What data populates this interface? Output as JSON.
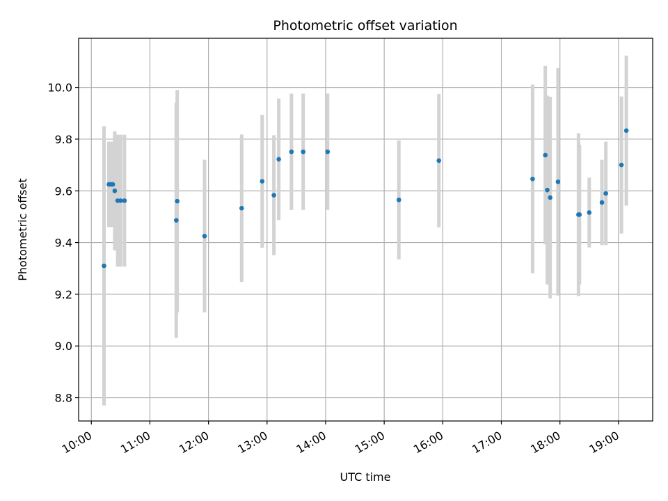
{
  "chart_data": {
    "type": "scatter",
    "title": "Photometric offset variation",
    "xlabel": "UTC time",
    "ylabel": "Photometric offset",
    "x_ticks": [
      "10:00",
      "11:00",
      "12:00",
      "13:00",
      "14:00",
      "15:00",
      "16:00",
      "17:00",
      "18:00",
      "19:00"
    ],
    "y_ticks": [
      "8.8",
      "9.0",
      "9.2",
      "9.4",
      "9.6",
      "9.8",
      "10.0"
    ],
    "xlim": [
      "09:47",
      "19:35"
    ],
    "ylim": [
      8.71,
      10.19
    ],
    "grid": true,
    "colors": {
      "point": "#1f77b4",
      "errorbar": "#d3d3d3",
      "grid": "#b0b0b0"
    },
    "points": [
      {
        "x": "10:13",
        "y": 9.31,
        "err": 0.54
      },
      {
        "x": "10:18",
        "y": 9.625,
        "err": 0.165
      },
      {
        "x": "10:20",
        "y": 9.625,
        "err": 0.165
      },
      {
        "x": "10:22",
        "y": 9.625,
        "err": 0.165
      },
      {
        "x": "10:24",
        "y": 9.6,
        "err": 0.23
      },
      {
        "x": "10:27",
        "y": 9.562,
        "err": 0.255
      },
      {
        "x": "10:30",
        "y": 9.562,
        "err": 0.255
      },
      {
        "x": "10:34",
        "y": 9.562,
        "err": 0.255
      },
      {
        "x": "11:27",
        "y": 9.486,
        "err": 0.455
      },
      {
        "x": "11:28",
        "y": 9.56,
        "err": 0.43
      },
      {
        "x": "11:56",
        "y": 9.425,
        "err": 0.295
      },
      {
        "x": "12:34",
        "y": 9.533,
        "err": 0.285
      },
      {
        "x": "12:55",
        "y": 9.637,
        "err": 0.257
      },
      {
        "x": "13:07",
        "y": 9.583,
        "err": 0.232
      },
      {
        "x": "13:12",
        "y": 9.722,
        "err": 0.235
      },
      {
        "x": "13:25",
        "y": 9.751,
        "err": 0.225
      },
      {
        "x": "13:37",
        "y": 9.751,
        "err": 0.225
      },
      {
        "x": "14:02",
        "y": 9.751,
        "err": 0.225
      },
      {
        "x": "15:15",
        "y": 9.565,
        "err": 0.23
      },
      {
        "x": "15:56",
        "y": 9.717,
        "err": 0.258
      },
      {
        "x": "17:32",
        "y": 9.646,
        "err": 0.365
      },
      {
        "x": "17:45",
        "y": 9.738,
        "err": 0.345
      },
      {
        "x": "17:47",
        "y": 9.603,
        "err": 0.365
      },
      {
        "x": "17:50",
        "y": 9.574,
        "err": 0.39
      },
      {
        "x": "17:58",
        "y": 9.635,
        "err": 0.44
      },
      {
        "x": "18:19",
        "y": 9.508,
        "err": 0.315
      },
      {
        "x": "18:20",
        "y": 9.508,
        "err": 0.27
      },
      {
        "x": "18:30",
        "y": 9.516,
        "err": 0.135
      },
      {
        "x": "18:43",
        "y": 9.555,
        "err": 0.165
      },
      {
        "x": "18:47",
        "y": 9.59,
        "err": 0.2
      },
      {
        "x": "19:03",
        "y": 9.7,
        "err": 0.265
      },
      {
        "x": "19:08",
        "y": 9.833,
        "err": 0.29
      }
    ]
  }
}
